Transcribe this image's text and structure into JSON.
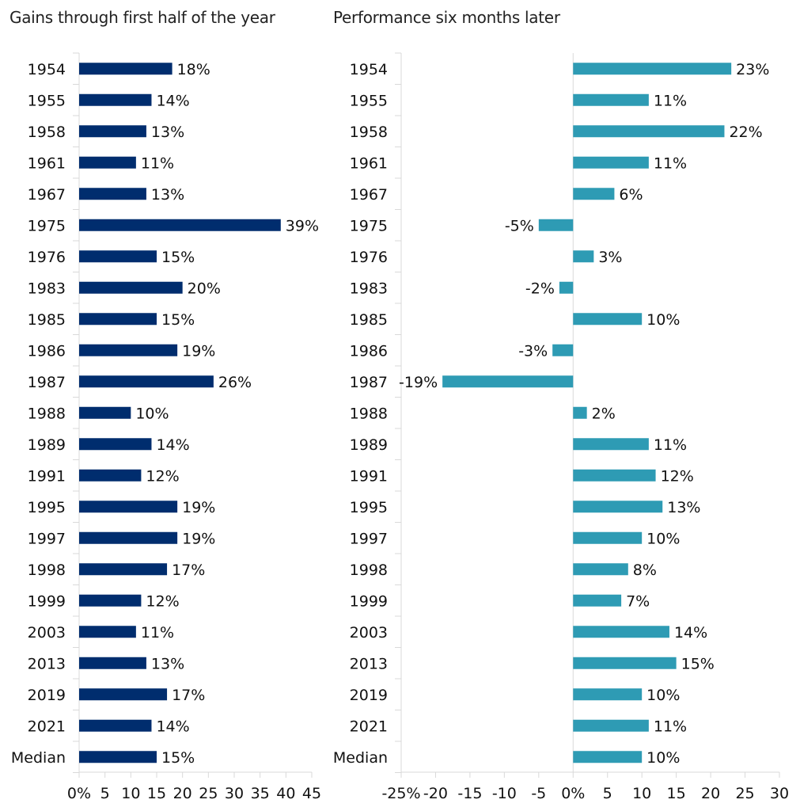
{
  "chart_data": [
    {
      "type": "bar",
      "orientation": "horizontal",
      "title": "Gains through first half of the year",
      "categories": [
        "1954",
        "1955",
        "1958",
        "1961",
        "1967",
        "1975",
        "1976",
        "1983",
        "1985",
        "1986",
        "1987",
        "1988",
        "1989",
        "1991",
        "1995",
        "1997",
        "1998",
        "1999",
        "2003",
        "2013",
        "2019",
        "2021",
        "Median"
      ],
      "values": [
        18,
        14,
        13,
        11,
        13,
        39,
        15,
        20,
        15,
        19,
        26,
        10,
        14,
        12,
        19,
        19,
        17,
        12,
        11,
        13,
        17,
        14,
        15
      ],
      "labels": [
        "18%",
        "14%",
        "13%",
        "11%",
        "13%",
        "39%",
        "15%",
        "20%",
        "15%",
        "19%",
        "26%",
        "10%",
        "14%",
        "12%",
        "19%",
        "19%",
        "17%",
        "12%",
        "11%",
        "13%",
        "17%",
        "14%",
        "15%"
      ],
      "xlim": [
        0,
        45
      ],
      "xticks": [
        0,
        5,
        10,
        15,
        20,
        25,
        30,
        35,
        40,
        45
      ],
      "xtick_labels": [
        "0%",
        "5",
        "10",
        "15",
        "20",
        "25",
        "30",
        "35",
        "40",
        "45"
      ],
      "color": "#002d6e",
      "grid": false
    },
    {
      "type": "bar",
      "orientation": "horizontal",
      "title": "Performance six months later",
      "categories": [
        "1954",
        "1955",
        "1958",
        "1961",
        "1967",
        "1975",
        "1976",
        "1983",
        "1985",
        "1986",
        "1987",
        "1988",
        "1989",
        "1991",
        "1995",
        "1997",
        "1998",
        "1999",
        "2003",
        "2013",
        "2019",
        "2021",
        "Median"
      ],
      "values": [
        23,
        11,
        22,
        11,
        6,
        -5,
        3,
        -2,
        10,
        -3,
        -19,
        2,
        11,
        12,
        13,
        10,
        8,
        7,
        14,
        15,
        10,
        11,
        10
      ],
      "labels": [
        "23%",
        "11%",
        "22%",
        "11%",
        "6%",
        "-5%",
        "3%",
        "-2%",
        "10%",
        "-3%",
        "-19%",
        "2%",
        "11%",
        "12%",
        "13%",
        "10%",
        "8%",
        "7%",
        "14%",
        "15%",
        "10%",
        "11%",
        "10%"
      ],
      "xlim": [
        -25,
        30
      ],
      "xticks": [
        -25,
        -20,
        -15,
        -10,
        -5,
        0,
        5,
        10,
        15,
        20,
        25,
        30
      ],
      "xtick_labels": [
        "-25%",
        "-20",
        "-15",
        "-10",
        "-5",
        "0%",
        "5",
        "10",
        "15",
        "20",
        "25",
        "30"
      ],
      "color": "#2e9bb4",
      "grid": false
    }
  ]
}
